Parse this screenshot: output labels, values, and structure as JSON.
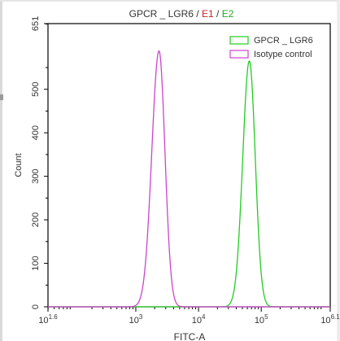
{
  "chart_data": {
    "type": "line",
    "title": {
      "prefix": "GPCR _ LGR6 / ",
      "e1": "E1",
      "sep": " / ",
      "e2": "E2"
    },
    "xlabel": "FITC-A",
    "ylabel": "Count",
    "x_scale": "log10",
    "xlim_exponent": [
      1.6,
      6.1
    ],
    "ylim": [
      0,
      651
    ],
    "x_ticks": [
      {
        "exp": 1.6,
        "base": "10",
        "sup": "1.6"
      },
      {
        "exp": 3,
        "base": "10",
        "sup": "3"
      },
      {
        "exp": 4,
        "base": "10",
        "sup": "4"
      },
      {
        "exp": 5,
        "base": "10",
        "sup": "5"
      },
      {
        "exp": 6.1,
        "base": "10",
        "sup": "6.1"
      }
    ],
    "y_ticks": [
      0,
      100,
      200,
      300,
      400,
      500,
      651
    ],
    "grid": false,
    "legend_position": "top-right",
    "series": [
      {
        "name": "GPCR _ LGR6",
        "color": "#22cc22",
        "peak_exp": 4.81,
        "peak_count": 565,
        "sigma_left": 0.105,
        "sigma_right": 0.095
      },
      {
        "name": "Isotype control",
        "color": "#cc44cc",
        "peak_exp": 3.37,
        "peak_count": 588,
        "sigma_left": 0.115,
        "sigma_right": 0.095
      }
    ],
    "colors": {
      "e1": "#cc2222",
      "e2": "#22aa22",
      "axis": "#000000"
    }
  }
}
